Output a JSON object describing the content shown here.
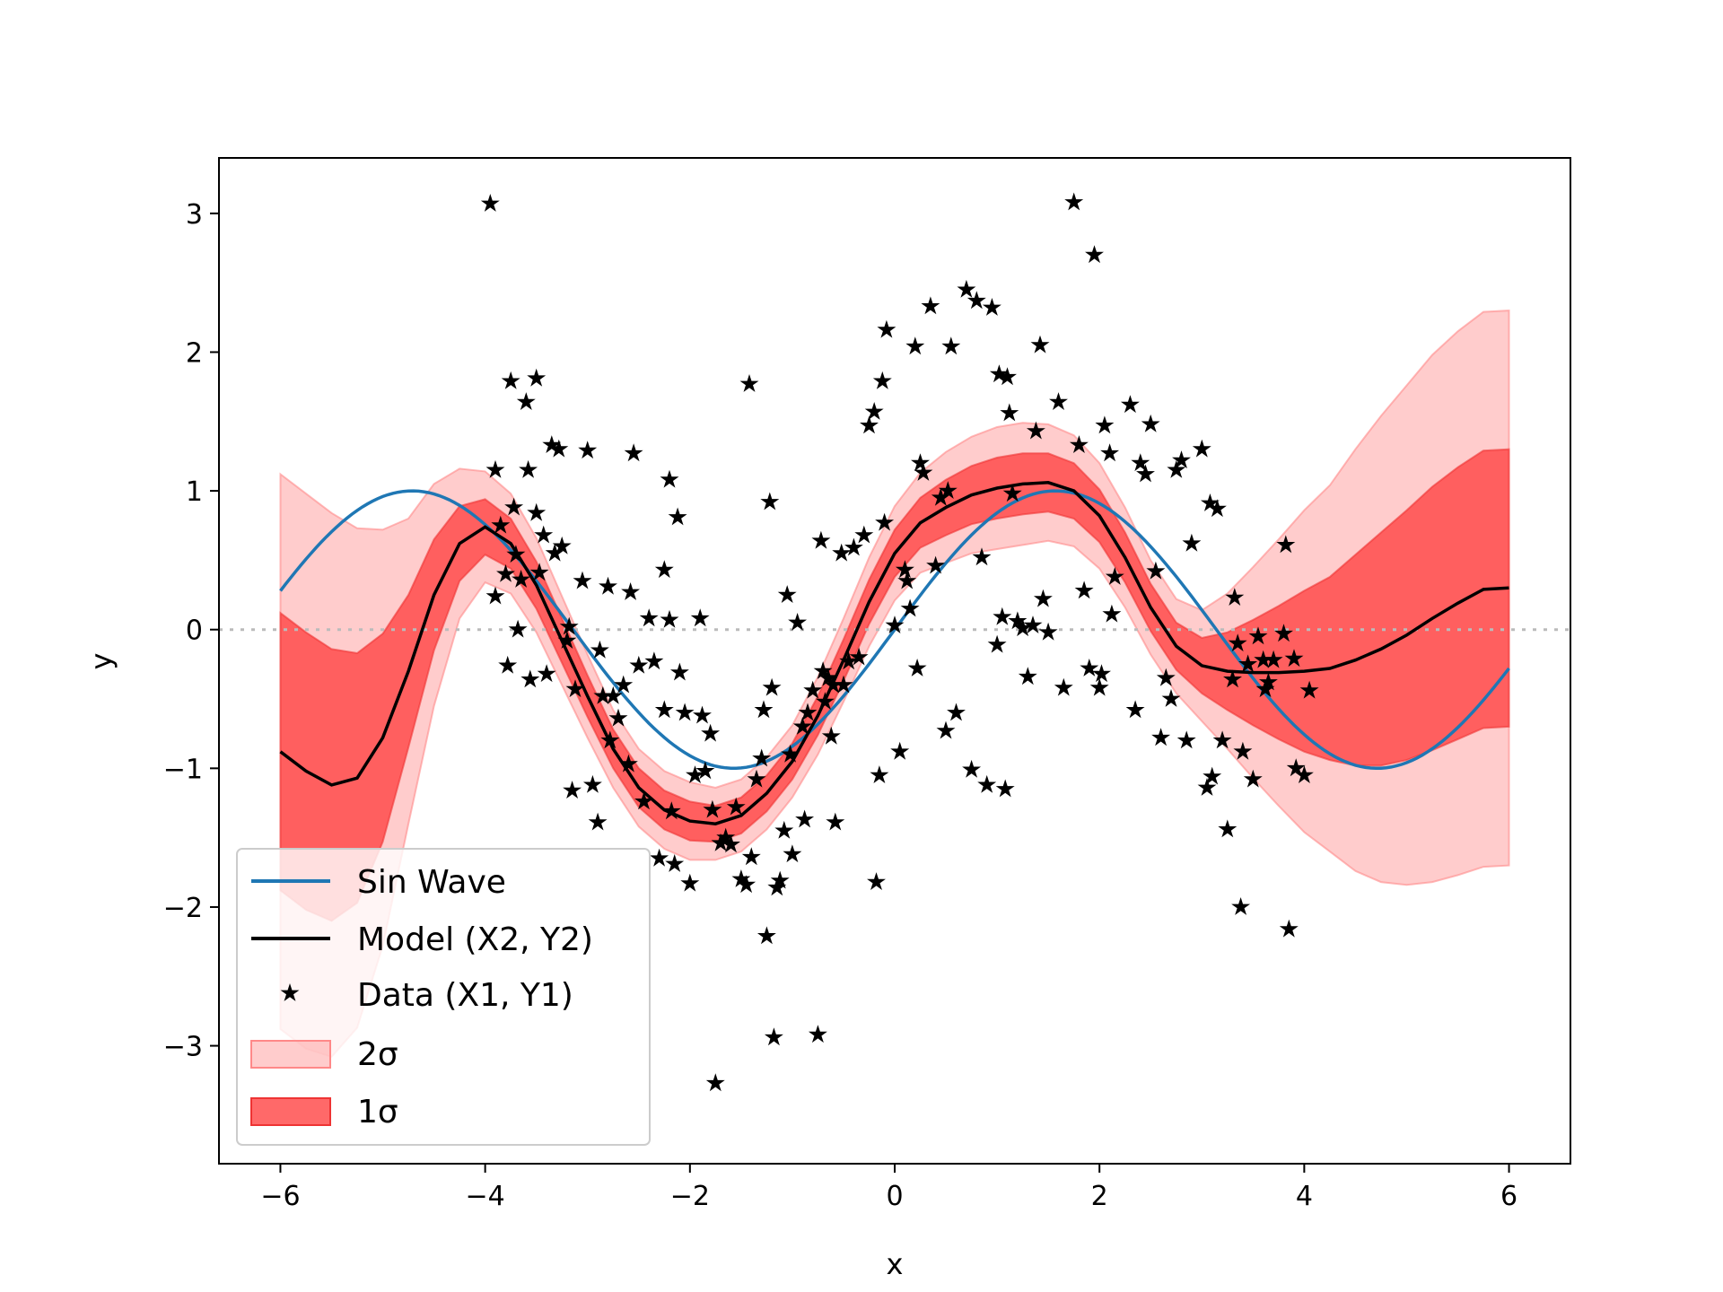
{
  "chart_data": {
    "type": "line",
    "title": "",
    "xlabel": "x",
    "ylabel": "y",
    "xlim": [
      -6.6,
      6.6
    ],
    "ylim": [
      -3.85,
      3.4
    ],
    "x_ticks": [
      -6,
      -4,
      -2,
      0,
      2,
      4,
      6
    ],
    "x_tick_labels": [
      "−6",
      "−4",
      "−2",
      "0",
      "2",
      "4",
      "6"
    ],
    "y_ticks": [
      -3,
      -2,
      -1,
      0,
      1,
      2,
      3
    ],
    "y_tick_labels": [
      "−3",
      "−2",
      "−1",
      "0",
      "1",
      "2",
      "3"
    ],
    "grid": false,
    "legend_position": "lower-left",
    "reference_line": {
      "y": 0,
      "style": "dotted",
      "color": "#bbbbbb"
    },
    "legend": [
      {
        "label": "Sin Wave",
        "kind": "line",
        "color": "#1f77b4"
      },
      {
        "label": "Model (X2, Y2)",
        "kind": "line",
        "color": "#000000"
      },
      {
        "label": "Data (X1, Y1)",
        "kind": "marker",
        "color": "#000000"
      },
      {
        "label": "2σ",
        "kind": "patch",
        "color": "#ff9999"
      },
      {
        "label": "1σ",
        "kind": "patch",
        "color": "#ff4444"
      }
    ],
    "sin_wave": {
      "name": "Sin Wave",
      "color": "#1f77b4",
      "x_range": [
        -6,
        6
      ],
      "function": "sin(x)"
    },
    "model": {
      "name": "Model (X2, Y2)",
      "color": "#000000",
      "x": [
        -6.0,
        -5.75,
        -5.5,
        -5.25,
        -5.0,
        -4.75,
        -4.5,
        -4.25,
        -4.0,
        -3.75,
        -3.5,
        -3.25,
        -3.0,
        -2.75,
        -2.5,
        -2.25,
        -2.0,
        -1.75,
        -1.5,
        -1.25,
        -1.0,
        -0.75,
        -0.5,
        -0.25,
        0.0,
        0.25,
        0.5,
        0.75,
        1.0,
        1.25,
        1.5,
        1.75,
        2.0,
        2.25,
        2.5,
        2.75,
        3.0,
        3.25,
        3.5,
        3.75,
        4.0,
        4.25,
        4.5,
        4.75,
        5.0,
        5.25,
        5.5,
        5.75,
        6.0
      ],
      "y": [
        -0.88,
        -1.02,
        -1.12,
        -1.07,
        -0.78,
        -0.3,
        0.25,
        0.62,
        0.74,
        0.62,
        0.32,
        -0.08,
        -0.48,
        -0.86,
        -1.14,
        -1.3,
        -1.38,
        -1.4,
        -1.34,
        -1.18,
        -0.95,
        -0.62,
        -0.22,
        0.2,
        0.55,
        0.77,
        0.88,
        0.97,
        1.02,
        1.05,
        1.06,
        1.0,
        0.82,
        0.52,
        0.16,
        -0.12,
        -0.26,
        -0.3,
        -0.31,
        -0.31,
        -0.3,
        -0.28,
        -0.22,
        -0.14,
        -0.04,
        0.08,
        0.19,
        0.29,
        0.3
      ],
      "sigma1_half_width": [
        1.0,
        1.0,
        0.98,
        0.9,
        0.75,
        0.55,
        0.4,
        0.27,
        0.2,
        0.18,
        0.17,
        0.16,
        0.15,
        0.14,
        0.14,
        0.14,
        0.14,
        0.13,
        0.13,
        0.13,
        0.13,
        0.14,
        0.15,
        0.16,
        0.17,
        0.18,
        0.2,
        0.21,
        0.22,
        0.22,
        0.21,
        0.2,
        0.19,
        0.18,
        0.17,
        0.17,
        0.2,
        0.28,
        0.38,
        0.48,
        0.58,
        0.66,
        0.76,
        0.84,
        0.9,
        0.95,
        0.98,
        1.0,
        1.0
      ]
    },
    "band_2sigma": {
      "label": "2σ",
      "color": "#ff9999",
      "multiplier": 2
    },
    "band_1sigma": {
      "label": "1σ",
      "color": "#ff4444",
      "multiplier": 1
    },
    "data_points": {
      "name": "Data (X1, Y1)",
      "marker": "star",
      "color": "#000000",
      "points": [
        [
          -3.95,
          3.07
        ],
        [
          -3.9,
          1.15
        ],
        [
          -3.9,
          0.24
        ],
        [
          -3.85,
          0.75
        ],
        [
          -3.8,
          0.4
        ],
        [
          -3.78,
          -0.26
        ],
        [
          -3.75,
          1.79
        ],
        [
          -3.72,
          0.88
        ],
        [
          -3.7,
          0.54
        ],
        [
          -3.68,
          0.0
        ],
        [
          -3.65,
          0.36
        ],
        [
          -3.6,
          1.64
        ],
        [
          -3.58,
          1.15
        ],
        [
          -3.56,
          -0.36
        ],
        [
          -3.5,
          1.81
        ],
        [
          -3.5,
          0.84
        ],
        [
          -3.47,
          0.41
        ],
        [
          -3.43,
          0.68
        ],
        [
          -3.4,
          -0.32
        ],
        [
          -3.35,
          1.33
        ],
        [
          -3.32,
          0.55
        ],
        [
          -3.28,
          1.3
        ],
        [
          -3.25,
          0.6
        ],
        [
          -3.2,
          -0.08
        ],
        [
          -3.18,
          0.02
        ],
        [
          -3.15,
          -1.16
        ],
        [
          -3.12,
          -0.43
        ],
        [
          -3.05,
          0.35
        ],
        [
          -3.0,
          1.29
        ],
        [
          -2.95,
          -1.12
        ],
        [
          -2.9,
          -1.39
        ],
        [
          -2.88,
          -0.15
        ],
        [
          -2.85,
          -0.48
        ],
        [
          -2.8,
          0.31
        ],
        [
          -2.78,
          -0.8
        ],
        [
          -2.75,
          -0.48
        ],
        [
          -2.7,
          -0.64
        ],
        [
          -2.65,
          -0.4
        ],
        [
          -2.6,
          -0.97
        ],
        [
          -2.58,
          0.27
        ],
        [
          -2.55,
          1.27
        ],
        [
          -2.5,
          -0.26
        ],
        [
          -2.45,
          -1.24
        ],
        [
          -2.4,
          0.08
        ],
        [
          -2.35,
          -0.23
        ],
        [
          -2.3,
          -1.65
        ],
        [
          -2.25,
          0.43
        ],
        [
          -2.25,
          -0.58
        ],
        [
          -2.2,
          1.08
        ],
        [
          -2.2,
          0.07
        ],
        [
          -2.18,
          -1.31
        ],
        [
          -2.15,
          -1.69
        ],
        [
          -2.12,
          0.81
        ],
        [
          -2.1,
          -0.31
        ],
        [
          -2.05,
          -0.6
        ],
        [
          -2.0,
          -1.83
        ],
        [
          -1.95,
          -1.05
        ],
        [
          -1.9,
          0.08
        ],
        [
          -1.88,
          -0.62
        ],
        [
          -1.85,
          -1.02
        ],
        [
          -1.8,
          -0.75
        ],
        [
          -1.78,
          -1.3
        ],
        [
          -1.75,
          -3.27
        ],
        [
          -1.7,
          -1.54
        ],
        [
          -1.65,
          -1.5
        ],
        [
          -1.6,
          -1.55
        ],
        [
          -1.55,
          -1.28
        ],
        [
          -1.5,
          -1.8
        ],
        [
          -1.45,
          -1.84
        ],
        [
          -1.42,
          1.77
        ],
        [
          -1.4,
          -1.64
        ],
        [
          -1.35,
          -1.08
        ],
        [
          -1.3,
          -0.93
        ],
        [
          -1.28,
          -0.58
        ],
        [
          -1.25,
          -2.21
        ],
        [
          -1.22,
          0.92
        ],
        [
          -1.2,
          -0.42
        ],
        [
          -1.18,
          -2.94
        ],
        [
          -1.15,
          -1.86
        ],
        [
          -1.12,
          -1.81
        ],
        [
          -1.08,
          -1.45
        ],
        [
          -1.05,
          0.25
        ],
        [
          -1.02,
          -0.9
        ],
        [
          -1.0,
          -1.62
        ],
        [
          -0.95,
          0.05
        ],
        [
          -0.9,
          -0.7
        ],
        [
          -0.88,
          -1.37
        ],
        [
          -0.85,
          -0.6
        ],
        [
          -0.8,
          -0.44
        ],
        [
          -0.75,
          -2.92
        ],
        [
          -0.72,
          0.64
        ],
        [
          -0.7,
          -0.3
        ],
        [
          -0.68,
          -0.52
        ],
        [
          -0.65,
          -0.35
        ],
        [
          -0.62,
          -0.77
        ],
        [
          -0.6,
          -0.4
        ],
        [
          -0.58,
          -1.39
        ],
        [
          -0.52,
          0.55
        ],
        [
          -0.5,
          -0.4
        ],
        [
          -0.45,
          -0.23
        ],
        [
          -0.4,
          0.59
        ],
        [
          -0.35,
          -0.2
        ],
        [
          -0.3,
          0.68
        ],
        [
          -0.25,
          1.47
        ],
        [
          -0.2,
          1.57
        ],
        [
          -0.18,
          -1.82
        ],
        [
          -0.15,
          -1.05
        ],
        [
          -0.12,
          1.79
        ],
        [
          -0.1,
          0.77
        ],
        [
          -0.08,
          2.16
        ],
        [
          0.0,
          0.03
        ],
        [
          0.05,
          -0.88
        ],
        [
          0.1,
          0.43
        ],
        [
          0.12,
          0.35
        ],
        [
          0.15,
          0.15
        ],
        [
          0.2,
          2.04
        ],
        [
          0.22,
          -0.28
        ],
        [
          0.25,
          1.2
        ],
        [
          0.28,
          1.13
        ],
        [
          0.35,
          2.33
        ],
        [
          0.4,
          0.46
        ],
        [
          0.45,
          0.95
        ],
        [
          0.5,
          -0.73
        ],
        [
          0.52,
          1.0
        ],
        [
          0.55,
          2.04
        ],
        [
          0.6,
          -0.6
        ],
        [
          0.7,
          2.45
        ],
        [
          0.75,
          -1.01
        ],
        [
          0.8,
          2.37
        ],
        [
          0.85,
          0.52
        ],
        [
          0.9,
          -1.12
        ],
        [
          0.95,
          2.32
        ],
        [
          1.0,
          -0.11
        ],
        [
          1.02,
          1.84
        ],
        [
          1.05,
          0.09
        ],
        [
          1.08,
          -1.15
        ],
        [
          1.1,
          1.82
        ],
        [
          1.12,
          1.56
        ],
        [
          1.15,
          0.98
        ],
        [
          1.2,
          0.06
        ],
        [
          1.25,
          0.01
        ],
        [
          1.3,
          -0.34
        ],
        [
          1.35,
          0.03
        ],
        [
          1.38,
          1.43
        ],
        [
          1.42,
          2.05
        ],
        [
          1.45,
          0.22
        ],
        [
          1.5,
          -0.02
        ],
        [
          1.6,
          1.64
        ],
        [
          1.65,
          -0.42
        ],
        [
          1.75,
          3.08
        ],
        [
          1.8,
          1.33
        ],
        [
          1.85,
          0.28
        ],
        [
          1.9,
          -0.28
        ],
        [
          1.95,
          2.7
        ],
        [
          2.0,
          -0.42
        ],
        [
          2.02,
          -0.32
        ],
        [
          2.05,
          1.47
        ],
        [
          2.1,
          1.27
        ],
        [
          2.12,
          0.11
        ],
        [
          2.15,
          0.38
        ],
        [
          2.3,
          1.62
        ],
        [
          2.35,
          -0.58
        ],
        [
          2.4,
          1.2
        ],
        [
          2.45,
          1.12
        ],
        [
          2.5,
          1.48
        ],
        [
          2.55,
          0.42
        ],
        [
          2.6,
          -0.78
        ],
        [
          2.65,
          -0.35
        ],
        [
          2.7,
          -0.5
        ],
        [
          2.75,
          1.15
        ],
        [
          2.8,
          1.22
        ],
        [
          2.85,
          -0.8
        ],
        [
          2.9,
          0.62
        ],
        [
          3.0,
          1.3
        ],
        [
          3.05,
          -1.14
        ],
        [
          3.08,
          0.91
        ],
        [
          3.1,
          -1.06
        ],
        [
          3.15,
          0.87
        ],
        [
          3.2,
          -0.8
        ],
        [
          3.25,
          -1.44
        ],
        [
          3.3,
          -0.36
        ],
        [
          3.32,
          0.23
        ],
        [
          3.35,
          -0.1
        ],
        [
          3.38,
          -2.0
        ],
        [
          3.4,
          -0.88
        ],
        [
          3.45,
          -0.25
        ],
        [
          3.5,
          -1.08
        ],
        [
          3.55,
          -0.05
        ],
        [
          3.6,
          -0.22
        ],
        [
          3.62,
          -0.43
        ],
        [
          3.65,
          -0.38
        ],
        [
          3.7,
          -0.22
        ],
        [
          3.8,
          -0.03
        ],
        [
          3.82,
          0.61
        ],
        [
          3.85,
          -2.16
        ],
        [
          3.9,
          -0.21
        ],
        [
          3.92,
          -1.0
        ],
        [
          4.0,
          -1.05
        ],
        [
          4.05,
          -0.44
        ]
      ]
    }
  }
}
